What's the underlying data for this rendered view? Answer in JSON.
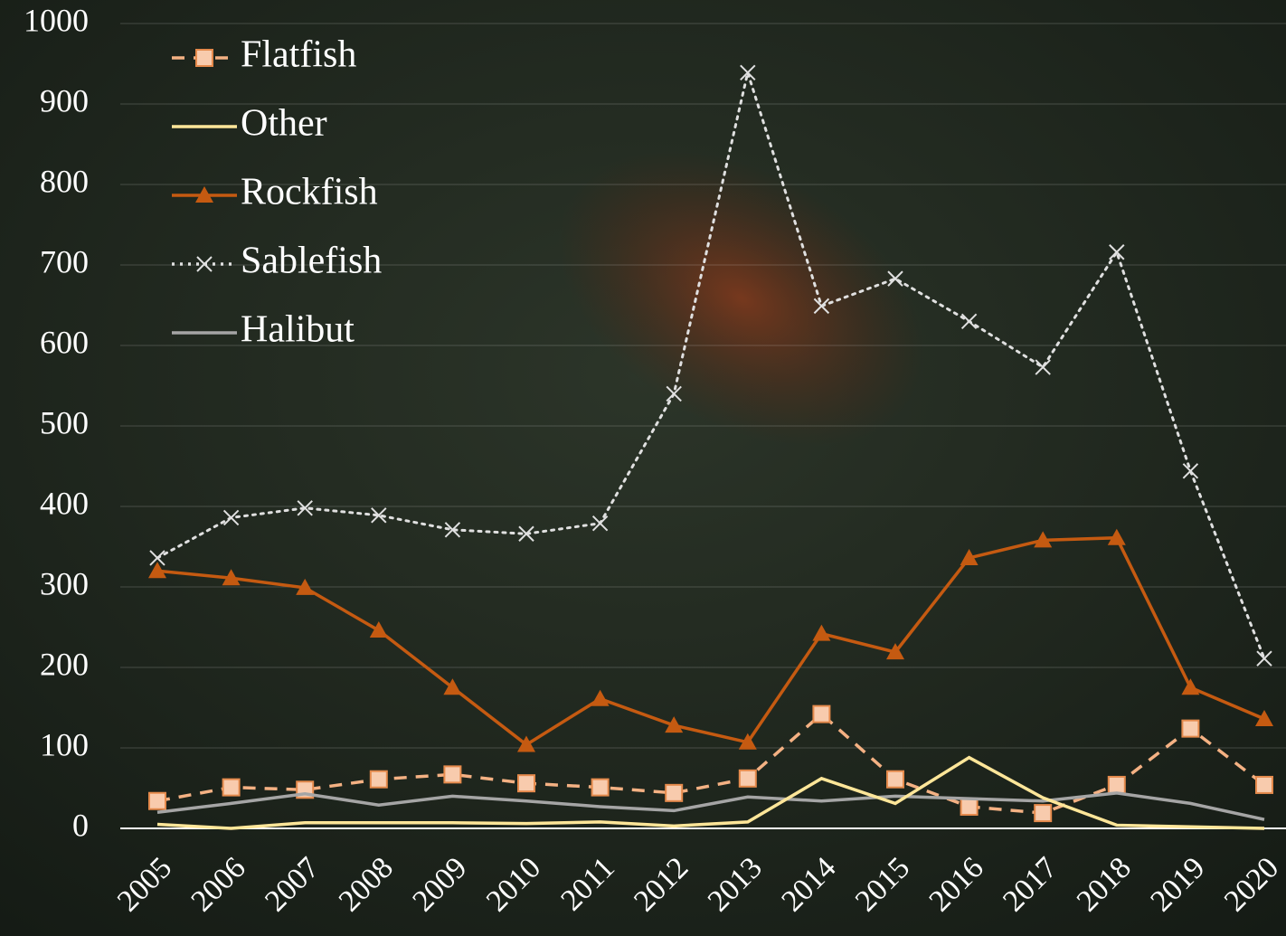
{
  "chart_data": {
    "type": "line",
    "categories": [
      "2005",
      "2006",
      "2007",
      "2008",
      "2009",
      "2010",
      "2011",
      "2012",
      "2013",
      "2014",
      "2015",
      "2016",
      "2017",
      "2018",
      "2019",
      "2020"
    ],
    "series": [
      {
        "name": "Flatfish",
        "color": "#f4b183",
        "line_style": "dashed",
        "marker": "square",
        "values": [
          34,
          51,
          48,
          61,
          67,
          56,
          51,
          44,
          62,
          142,
          61,
          27,
          19,
          54,
          124,
          54
        ]
      },
      {
        "name": "Other",
        "color": "#ffe699",
        "line_style": "solid",
        "marker": "none",
        "values": [
          5,
          0,
          7,
          7,
          7,
          6,
          8,
          3,
          8,
          62,
          31,
          88,
          38,
          4,
          2,
          0
        ]
      },
      {
        "name": "Rockfish",
        "color": "#c55a11",
        "line_style": "solid",
        "marker": "triangle",
        "values": [
          320,
          311,
          299,
          246,
          175,
          104,
          161,
          128,
          107,
          242,
          219,
          336,
          358,
          361,
          175,
          136
        ]
      },
      {
        "name": "Sablefish",
        "color": "#e0e0e0",
        "line_style": "dotted",
        "marker": "x",
        "values": [
          336,
          386,
          398,
          389,
          371,
          366,
          379,
          540,
          939,
          649,
          683,
          630,
          573,
          716,
          444,
          211
        ]
      },
      {
        "name": "Halibut",
        "color": "#a5a5a5",
        "line_style": "solid",
        "marker": "none",
        "values": [
          20,
          31,
          43,
          29,
          40,
          34,
          27,
          22,
          39,
          34,
          40,
          37,
          34,
          44,
          31,
          11
        ]
      }
    ],
    "ylim": [
      0,
      1000
    ],
    "yticks": [
      0,
      100,
      200,
      300,
      400,
      500,
      600,
      700,
      800,
      900,
      1000
    ],
    "grid": true,
    "legend": "top-left"
  }
}
